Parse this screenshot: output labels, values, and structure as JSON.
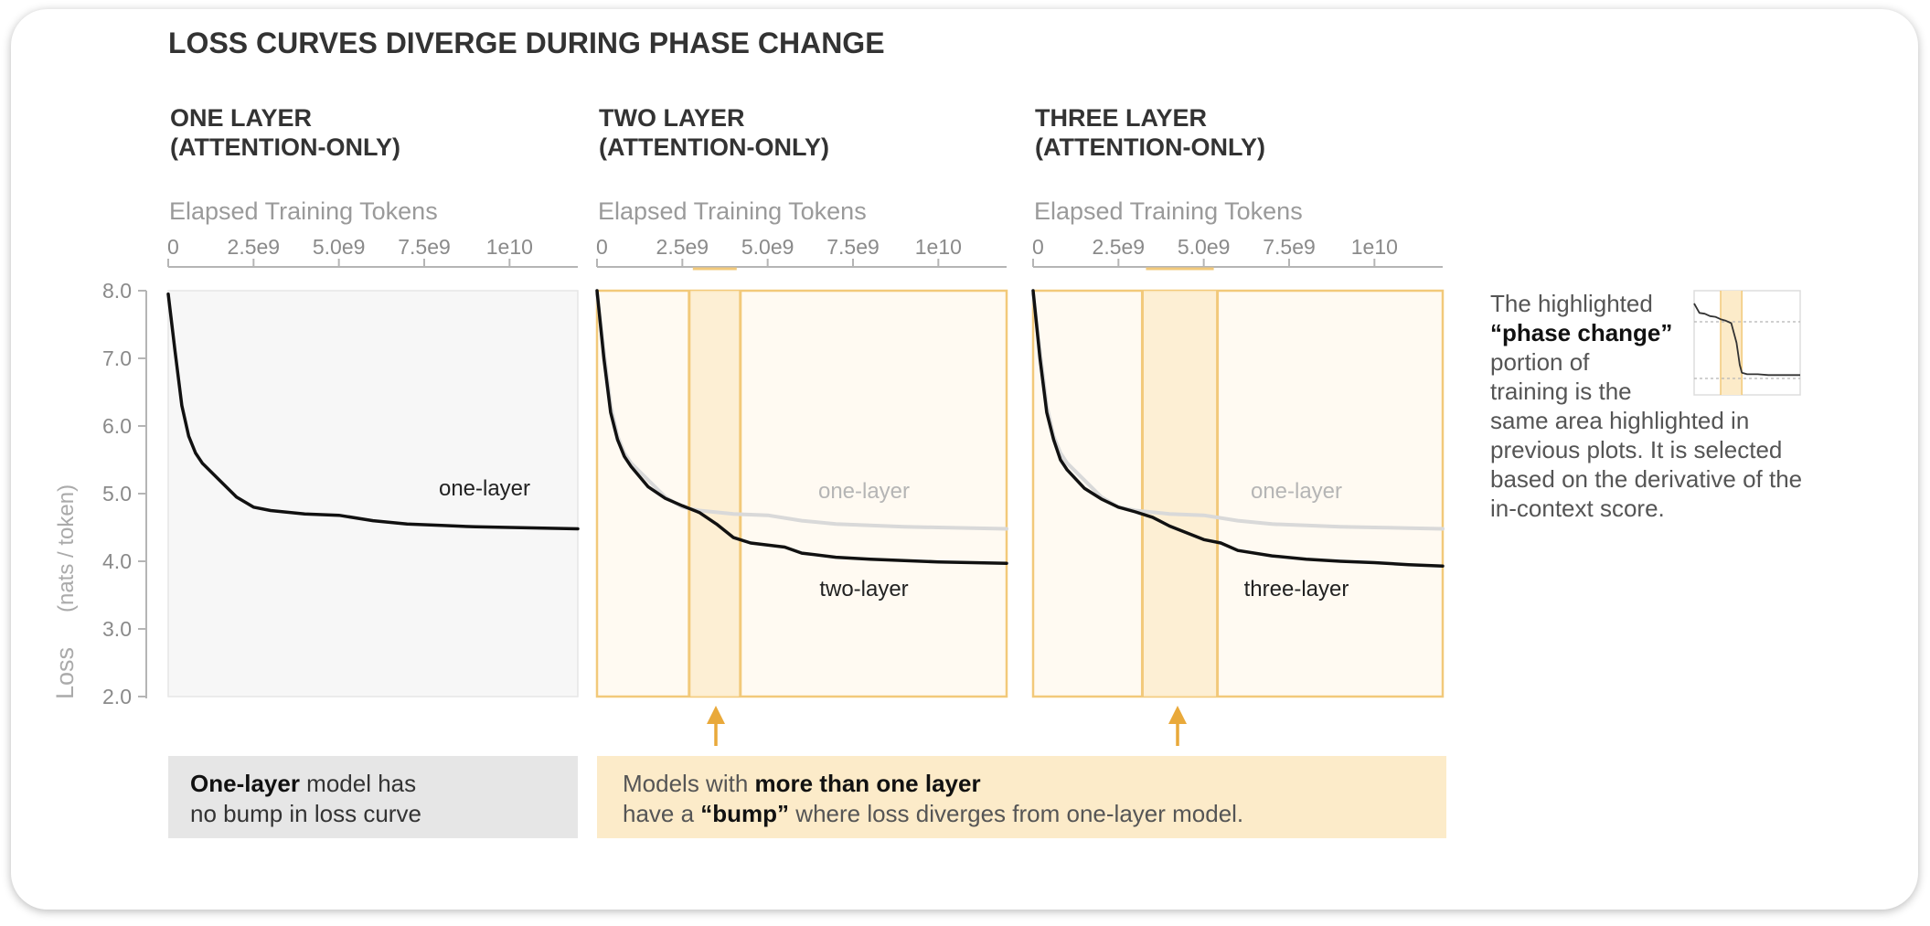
{
  "figure": {
    "title": "LOSS CURVES DIVERGE DURING PHASE CHANGE",
    "y_axis_label": "Loss",
    "y_axis_unit": "(nats / token)",
    "x_axis_label": "Elapsed Training Tokens"
  },
  "chart_data": [
    {
      "type": "line",
      "title_line1": "ONE LAYER",
      "title_line2": "(ATTENTION-ONLY)",
      "xlabel": "Elapsed Training Tokens",
      "ylabel": "Loss (nats / token)",
      "xlim": [
        0,
        12000000000
      ],
      "ylim": [
        2.0,
        8.0
      ],
      "x_ticks": [
        "0",
        "2.5e9",
        "5.0e9",
        "7.5e9",
        "1e10"
      ],
      "y_ticks": [
        "8.0",
        "7.0",
        "6.0",
        "5.0",
        "4.0",
        "3.0",
        "2.0"
      ],
      "phase_change": null,
      "series": [
        {
          "name": "one-layer",
          "x": [
            0,
            200000000,
            400000000,
            600000000,
            800000000,
            1000000000,
            1500000000,
            2000000000,
            2500000000,
            3000000000,
            4000000000,
            5000000000,
            6000000000,
            7000000000,
            8000000000,
            9000000000,
            10000000000,
            11000000000,
            12000000000
          ],
          "y": [
            7.95,
            7.1,
            6.3,
            5.85,
            5.6,
            5.45,
            5.2,
            4.95,
            4.8,
            4.75,
            4.7,
            4.68,
            4.6,
            4.55,
            4.53,
            4.51,
            4.5,
            4.49,
            4.48
          ]
        }
      ]
    },
    {
      "type": "line",
      "title_line1": "TWO LAYER",
      "title_line2": "(ATTENTION-ONLY)",
      "xlabel": "Elapsed Training Tokens",
      "ylabel": "Loss (nats / token)",
      "xlim": [
        0,
        12000000000
      ],
      "ylim": [
        2.0,
        8.0
      ],
      "x_ticks": [
        "0",
        "2.5e9",
        "5.0e9",
        "7.5e9",
        "1e10"
      ],
      "y_ticks": [
        "8.0",
        "7.0",
        "6.0",
        "5.0",
        "4.0",
        "3.0",
        "2.0"
      ],
      "phase_change": [
        2700000000,
        4200000000
      ],
      "series": [
        {
          "name": "one-layer",
          "x": [
            0,
            200000000,
            400000000,
            600000000,
            800000000,
            1000000000,
            1500000000,
            2000000000,
            2500000000,
            3000000000,
            4000000000,
            5000000000,
            6000000000,
            7000000000,
            8000000000,
            9000000000,
            10000000000,
            11000000000,
            12000000000
          ],
          "y": [
            7.95,
            7.1,
            6.3,
            5.85,
            5.6,
            5.45,
            5.2,
            4.95,
            4.8,
            4.75,
            4.7,
            4.68,
            4.6,
            4.55,
            4.53,
            4.51,
            4.5,
            4.49,
            4.48
          ]
        },
        {
          "name": "two-layer",
          "x": [
            0,
            200000000,
            400000000,
            600000000,
            800000000,
            1000000000,
            1500000000,
            2000000000,
            2500000000,
            3000000000,
            3500000000,
            4000000000,
            4500000000,
            5000000000,
            5500000000,
            6000000000,
            7000000000,
            8000000000,
            9000000000,
            10000000000,
            11000000000,
            12000000000
          ],
          "y": [
            8.0,
            7.0,
            6.2,
            5.8,
            5.55,
            5.4,
            5.1,
            4.93,
            4.82,
            4.72,
            4.55,
            4.35,
            4.27,
            4.24,
            4.21,
            4.12,
            4.06,
            4.03,
            4.01,
            3.99,
            3.98,
            3.97
          ]
        }
      ]
    },
    {
      "type": "line",
      "title_line1": "THREE LAYER",
      "title_line2": "(ATTENTION-ONLY)",
      "xlabel": "Elapsed Training Tokens",
      "ylabel": "Loss (nats / token)",
      "xlim": [
        0,
        12000000000
      ],
      "ylim": [
        2.0,
        8.0
      ],
      "x_ticks": [
        "0",
        "2.5e9",
        "5.0e9",
        "7.5e9",
        "1e10"
      ],
      "y_ticks": [
        "8.0",
        "7.0",
        "6.0",
        "5.0",
        "4.0",
        "3.0",
        "2.0"
      ],
      "phase_change": [
        3200000000,
        5400000000
      ],
      "series": [
        {
          "name": "one-layer",
          "x": [
            0,
            200000000,
            400000000,
            600000000,
            800000000,
            1000000000,
            1500000000,
            2000000000,
            2500000000,
            3000000000,
            4000000000,
            5000000000,
            6000000000,
            7000000000,
            8000000000,
            9000000000,
            10000000000,
            11000000000,
            12000000000
          ],
          "y": [
            7.95,
            7.1,
            6.3,
            5.85,
            5.6,
            5.45,
            5.2,
            4.95,
            4.8,
            4.75,
            4.7,
            4.68,
            4.6,
            4.55,
            4.53,
            4.51,
            4.5,
            4.49,
            4.48
          ]
        },
        {
          "name": "three-layer",
          "x": [
            0,
            200000000,
            400000000,
            600000000,
            800000000,
            1000000000,
            1500000000,
            2000000000,
            2500000000,
            3000000000,
            3500000000,
            4000000000,
            4500000000,
            5000000000,
            5500000000,
            6000000000,
            7000000000,
            8000000000,
            9000000000,
            10000000000,
            11000000000,
            12000000000
          ],
          "y": [
            8.0,
            7.0,
            6.2,
            5.8,
            5.5,
            5.35,
            5.08,
            4.92,
            4.8,
            4.73,
            4.65,
            4.52,
            4.42,
            4.32,
            4.27,
            4.16,
            4.08,
            4.03,
            4.0,
            3.98,
            3.95,
            3.93
          ]
        }
      ]
    }
  ],
  "inset": {
    "phase_change": [
      0.25,
      0.45
    ],
    "x": [
      0,
      0.05,
      0.1,
      0.15,
      0.2,
      0.25,
      0.3,
      0.35,
      0.4,
      0.43,
      0.45,
      0.5,
      0.6,
      0.7,
      0.8,
      0.9,
      1.0
    ],
    "y": [
      0.0,
      0.12,
      0.13,
      0.16,
      0.17,
      0.2,
      0.22,
      0.25,
      0.5,
      0.78,
      0.88,
      0.9,
      0.9,
      0.91,
      0.91,
      0.91,
      0.91
    ]
  },
  "callouts": {
    "left": {
      "bold": "One-layer",
      "rest": " model has",
      "line2": "no bump in loss curve"
    },
    "right": {
      "line1_pre": "Models with ",
      "line1_bold": "more than one layer",
      "line2_pre": "have a ",
      "line2_bold": "“bump”",
      "line2_post": " where loss diverges from one-layer model."
    }
  },
  "side_note": {
    "line1": "The highlighted",
    "bold": "“phase change”",
    "rest": "portion of training is the same area highlighted in previous plots. It is selected based on the derivative of the in-context score."
  },
  "colors": {
    "curve": "#111111",
    "ghost": "#d9d9d9",
    "grey_text": "#9a9a9a",
    "highlight_fill": "#fcebc9",
    "highlight_line": "#f2c97a",
    "arrow": "#e9a93a",
    "panel_bg_one": "#f7f7f7",
    "panel_bg_multi": "#fffaf2"
  }
}
